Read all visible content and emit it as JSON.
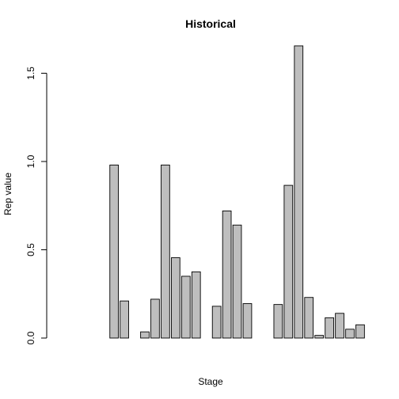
{
  "chart_data": {
    "type": "bar",
    "title": "Historical",
    "xlabel": "Stage",
    "ylabel": "Rep value",
    "ylim": [
      0,
      1.7
    ],
    "yticks": [
      0.0,
      0.5,
      1.0,
      1.5
    ],
    "ytick_labels": [
      "0.0",
      "0.5",
      "1.0",
      "1.5"
    ],
    "grid": false,
    "legend": "none",
    "bar_color": "#bebebe",
    "values": [
      0,
      0,
      0,
      0,
      0,
      0.98,
      0.21,
      0,
      0.035,
      0.22,
      0.98,
      0.455,
      0.35,
      0.375,
      0,
      0.18,
      0.72,
      0.64,
      0.195,
      0,
      0,
      0.19,
      0.865,
      1.655,
      0.23,
      0.015,
      0.115,
      0.14,
      0.05,
      0.075
    ]
  }
}
